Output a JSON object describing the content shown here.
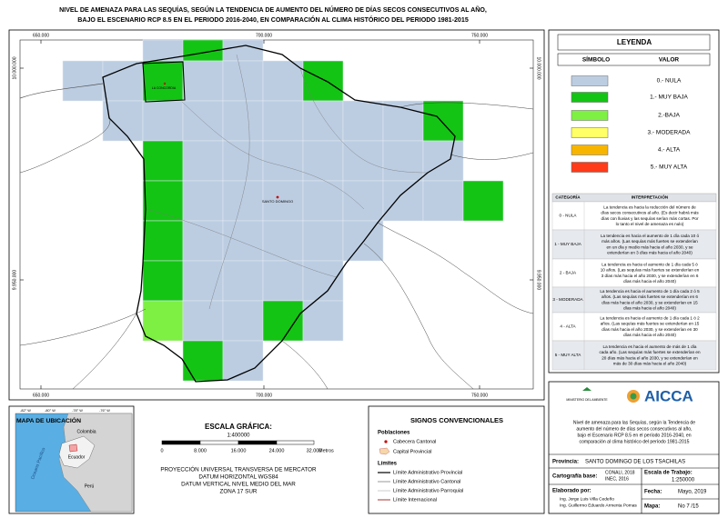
{
  "title": [
    "NIVEL DE AMENAZA PARA LAS SEQUÍAS, SEGÚN LA TENDENCIA DE AUMENTO DEL NÚMERO DE DÍAS SECOS CONSECUTIVOS AL AÑO,",
    "BAJO EL ESCENARIO RCP 8.5 EN EL PERIODO 2016-2040, EN COMPARACIÓN AL CLIMA HISTÓRICO DEL PERIODO 1981-2015"
  ],
  "map": {
    "x_coords": [
      "650.000",
      "700.000",
      "750.000"
    ],
    "y_coords": [
      "10.000.000",
      "9.950.000"
    ],
    "place_labels": [
      "LA CONCORDIA",
      "SANTO DOMINGO"
    ]
  },
  "legend": {
    "title": "LEYENDA",
    "headers": [
      "SÍMBOLO",
      "VALOR"
    ],
    "items": [
      {
        "label": "0.- NULA",
        "color": "#bccde2"
      },
      {
        "label": "1.- MUY BAJA",
        "color": "#14c414"
      },
      {
        "label": "2.-BAJA",
        "color": "#7ef043"
      },
      {
        "label": "3.- MODERADA",
        "color": "#ffff66"
      },
      {
        "label": "4.- ALTA",
        "color": "#f7b500"
      },
      {
        "label": "5.- MUY ALTA",
        "color": "#ff3b1a"
      }
    ]
  },
  "interpretation": {
    "headers": [
      "CATEGORÍA",
      "INTERPRETACIÓN"
    ],
    "rows": [
      {
        "category": "0 - NULA",
        "text": [
          "La tendencia es hacia la reducción del número de",
          "días secos consecutivos al año. (Es decir habrá más",
          "días con lluvias y las sequías serían más cortas. Por",
          "lo tanto el nivel de amenaza es nulo)"
        ]
      },
      {
        "category": "1 - MUY BAJA",
        "text": [
          "La tendencia es hacia el aumento de 1 día cada 10 ó",
          "más años. (Las sequías más fuertes se extenderían",
          "en un día y medio más hacia el año 2030, y se",
          "extenderían en 3 días más hacia el año 2040)"
        ]
      },
      {
        "category": "2 - BAJA",
        "text": [
          "La tendencia es hacia el aumento de 1 día cada 5 ó",
          "10 años. (Las sequías más fuertes se extenderían en",
          "3 días más hacia el año 2030, y se extenderían en 6",
          "días más hacia el año 2040)"
        ]
      },
      {
        "category": "3 - MODERADA",
        "text": [
          "La tendencia es hacia el aumento de 1 día cada 2 ó 5",
          "años. (Las sequías más fuertes se extenderían en 6",
          "días más hacia el año 2030, y se extenderían en 15",
          "días más hacia el año 2040)"
        ]
      },
      {
        "category": "4 - ALTA",
        "text": [
          "La tendencia es hacia el aumento de 1 día cada 1 ó 2",
          "años. (Las sequías más fuertes se extenderían en 15",
          "días más hacia el año 2030, y se extenderían en 30",
          "días más hacia el año 2040)"
        ]
      },
      {
        "category": "5 - MUY ALTA",
        "text": [
          "La tendencia es hacia el aumento de más de 1 día",
          "cada año. (Las sequías más fuertes se extenderían en",
          "20 días más hacia el año 2030, y se extenderían en",
          "más de 30 días más hacia el año 2040)"
        ]
      }
    ]
  },
  "location_map": {
    "title": "MAPA DE UBICACIÓN",
    "lon_ticks": [
      "-82° W",
      "-80° W",
      "-78° W",
      "-76° W"
    ],
    "countries": [
      "Colombia",
      "Ecuador",
      "Perú"
    ],
    "ocean": "Oceano Pacífico"
  },
  "scale": {
    "title": "ESCALA GRÁFICA:",
    "ratio": "1:400000",
    "ticks": [
      "0",
      "8.000",
      "16.000",
      "24.000",
      "32.000"
    ],
    "unit": "Metros",
    "projection": [
      "PROYECCIÓN UNIVERSAL TRANSVERSA DE MERCATOR",
      "DATUM HORIZONTAL WGS84",
      "DATUM VERTICAL NIVEL MEDIO DEL MAR",
      "ZONA 17 SUR"
    ]
  },
  "symbols": {
    "title": "SIGNOS CONVENCIONALES",
    "populations_title": "Poblaciones",
    "populations": [
      "Cabecera Cantonal",
      "Capital Provincial"
    ],
    "limits_title": "Límites",
    "limits": [
      "Límite Administrativo Provincial",
      "Límite Administrativo Cantonal",
      "Límite Administrativo Parroquial",
      "Límite Internacional"
    ]
  },
  "credits": {
    "ministry": "MINISTERIO DEL AMBIENTE",
    "project": "AICCA",
    "description": [
      "Nivel de amenaza para las Sequías, según la Tendencia de",
      "aumento del número de días secos consecutivos al año,",
      "bajo el Escenario RCP 8.5 en el período 2016-2040, en",
      "comparación al clima histórico del período 1981-2015"
    ],
    "province_label": "Provincia:",
    "province": "SANTO DOMINGO DE LOS TSACHILAS",
    "base_label": "Cartografía base:",
    "base": [
      "CONALI, 2018",
      "INEC, 2016"
    ],
    "scale_label": "Escala de Trabajo:",
    "scale": "1:250000",
    "author_label": "Elaborado por:",
    "authors": [
      "Ing. Jorge Luis Villa Cedeño",
      "Ing. Guillermo Eduardo Armenta Pomas"
    ],
    "date_label": "Fecha:",
    "date": "Mayo, 2019",
    "map_label": "Mapa:",
    "map_number": "No 7 /15"
  }
}
